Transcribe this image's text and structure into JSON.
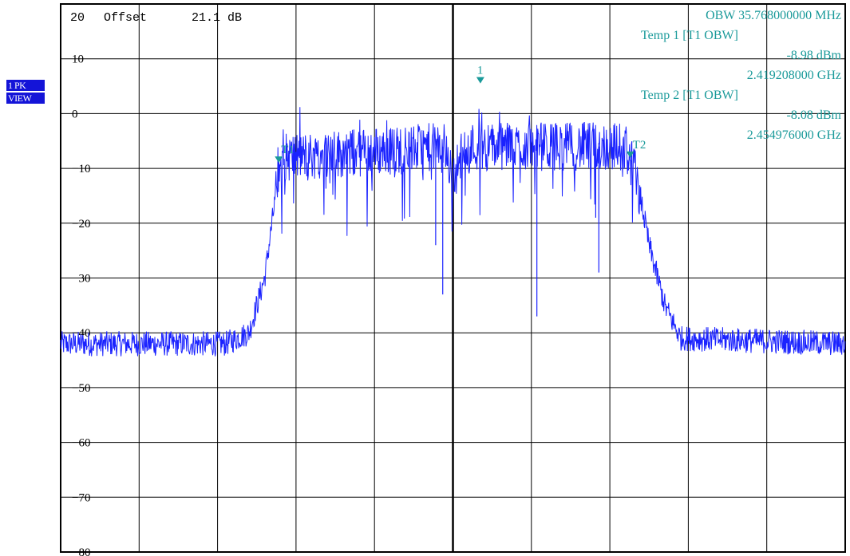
{
  "side_badge": {
    "line1": "1 PK",
    "line2": "VIEW"
  },
  "header": {
    "ref_level": "20",
    "offset_label": "Offset",
    "offset_value": "21.1 dB"
  },
  "info_box": {
    "obw": "OBW 35.768000000 MHz",
    "temp1_label": "Temp 1 [T1 OBW]",
    "temp1_level": "-8.98 dBm",
    "temp1_freq": "2.419208000 GHz",
    "temp2_label": "Temp 2 [T1 OBW]",
    "temp2_level": "-8.08 dBm",
    "temp2_freq": "2.454976000 GHz"
  },
  "colors": {
    "trace": "#1a22ff",
    "marker": "#1a9a9a",
    "grid": "#000000",
    "badge": "#1414d8"
  },
  "chart_data": {
    "type": "line",
    "ylim": [
      -80,
      20
    ],
    "ylabel_ticks": [
      "10",
      "0",
      "-10",
      "-20",
      "-30",
      "-40",
      "-50",
      "-60",
      "-70",
      "-80"
    ],
    "y_tick_values": [
      10,
      0,
      -10,
      -20,
      -30,
      -40,
      -50,
      -60,
      -70,
      -80
    ],
    "x_divisions": 10,
    "grid": true,
    "markers": [
      {
        "label": "1",
        "x_frac": 0.535,
        "level": 5.5
      },
      {
        "label": "T1",
        "x_frac": 0.278,
        "level": -8.98
      },
      {
        "label": "T2",
        "x_frac": 0.726,
        "level": -8.08
      }
    ],
    "trace_profile": [
      [
        0.0,
        -42
      ],
      [
        0.21,
        -42
      ],
      [
        0.24,
        -40
      ],
      [
        0.26,
        -30
      ],
      [
        0.275,
        -14
      ],
      [
        0.285,
        -8
      ],
      [
        0.49,
        -6
      ],
      [
        0.5,
        -12
      ],
      [
        0.515,
        -6
      ],
      [
        0.72,
        -6
      ],
      [
        0.735,
        -12
      ],
      [
        0.75,
        -24
      ],
      [
        0.77,
        -35
      ],
      [
        0.79,
        -41
      ],
      [
        1.0,
        -42
      ]
    ],
    "trace_spikes": [
      {
        "x_frac": 0.487,
        "level": -33
      },
      {
        "x_frac": 0.478,
        "level": -24
      },
      {
        "x_frac": 0.607,
        "level": -37
      },
      {
        "x_frac": 0.686,
        "level": -29
      },
      {
        "x_frac": 0.682,
        "level": -19
      }
    ]
  }
}
